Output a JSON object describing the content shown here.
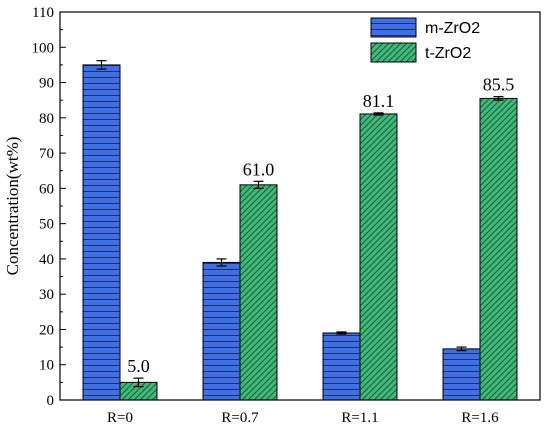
{
  "chart_data": {
    "type": "bar",
    "title": "",
    "xlabel": "",
    "ylabel": "Concentration(wt%)",
    "ylim": [
      0,
      110
    ],
    "yticks": [
      0,
      10,
      20,
      30,
      40,
      50,
      60,
      70,
      80,
      90,
      100,
      110
    ],
    "categories": [
      "R=0",
      "R=0.7",
      "R=1.1",
      "R=1.6"
    ],
    "legend_position": "top-right",
    "grid": false,
    "series": [
      {
        "name": "m-ZrO2",
        "color": "#3f6fe3",
        "pattern": "horizontal-lines",
        "values": [
          95.0,
          39.0,
          19.0,
          14.5
        ],
        "errors": [
          1.2,
          1.0,
          0.3,
          0.5
        ]
      },
      {
        "name": "t-ZrO2",
        "color": "#3fb87a",
        "pattern": "diagonal-lines",
        "values": [
          5.0,
          61.0,
          81.1,
          85.5
        ],
        "errors": [
          1.2,
          1.0,
          0.3,
          0.5
        ],
        "data_labels": [
          "5.0",
          "61.0",
          "81.1",
          "85.5"
        ]
      }
    ]
  }
}
